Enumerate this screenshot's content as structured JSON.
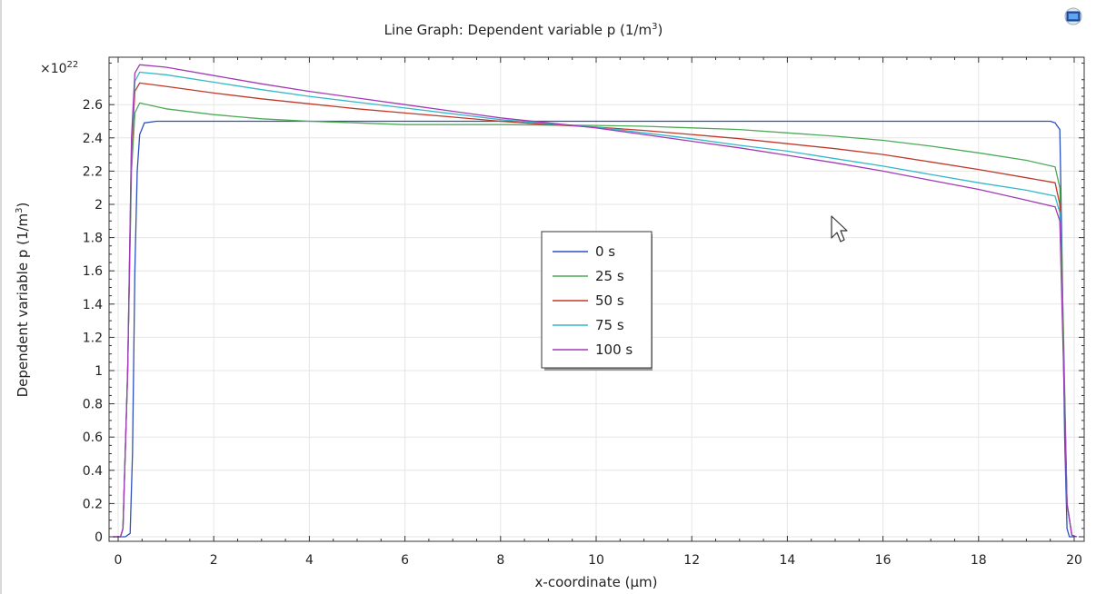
{
  "toolbar": {
    "export_icon": "image-export-icon"
  },
  "chart_data": {
    "type": "line",
    "title": "Line Graph: Dependent variable p (1/m³)",
    "title_parts": {
      "main": "Line Graph: Dependent variable p (1/m",
      "sup": "3",
      "close": ")"
    },
    "xlabel": "x-coordinate (µm)",
    "ylabel": "Dependent variable p (1/m³)",
    "ylabel_parts": {
      "main": "Dependent variable p (1/m",
      "sup": "3",
      "close": ")"
    },
    "y_multiplier": {
      "base": "×10",
      "exp": "22"
    },
    "xlim": [
      -0.3,
      20.2
    ],
    "ylim": [
      -0.03,
      2.86
    ],
    "x_ticks": [
      0,
      2,
      4,
      6,
      8,
      10,
      12,
      14,
      16,
      18,
      20
    ],
    "x_tick_labels": [
      "0",
      "2",
      "4",
      "6",
      "8",
      "10",
      "12",
      "14",
      "16",
      "18",
      "20"
    ],
    "y_ticks": [
      0,
      0.2,
      0.4,
      0.6,
      0.8,
      1,
      1.2,
      1.4,
      1.6,
      1.8,
      2,
      2.2,
      2.4,
      2.6
    ],
    "y_tick_labels": [
      "0",
      "0.2",
      "0.4",
      "0.6",
      "0.8",
      "1",
      "1.2",
      "1.4",
      "1.6",
      "1.8",
      "2",
      "2.2",
      "2.4",
      "2.6"
    ],
    "grid": true,
    "legend_position": "center",
    "series": [
      {
        "name": "0 s",
        "color": "#2f4fbf",
        "points": [
          [
            -0.1,
            0
          ],
          [
            0.15,
            0
          ],
          [
            0.25,
            0.02
          ],
          [
            0.3,
            0.5
          ],
          [
            0.35,
            1.6
          ],
          [
            0.4,
            2.2
          ],
          [
            0.45,
            2.42
          ],
          [
            0.55,
            2.49
          ],
          [
            0.8,
            2.5
          ],
          [
            19.5,
            2.5
          ],
          [
            19.6,
            2.49
          ],
          [
            19.7,
            2.45
          ],
          [
            19.75,
            1.6
          ],
          [
            19.8,
            0.6
          ],
          [
            19.85,
            0.05
          ],
          [
            19.9,
            0
          ],
          [
            20.0,
            0
          ]
        ]
      },
      {
        "name": "25 s",
        "color": "#4daa57",
        "points": [
          [
            -0.1,
            0
          ],
          [
            0.05,
            0
          ],
          [
            0.1,
            0.05
          ],
          [
            0.2,
            1.0
          ],
          [
            0.28,
            2.2
          ],
          [
            0.35,
            2.55
          ],
          [
            0.45,
            2.61
          ],
          [
            1,
            2.575
          ],
          [
            2,
            2.54
          ],
          [
            3,
            2.515
          ],
          [
            4,
            2.5
          ],
          [
            5,
            2.49
          ],
          [
            6,
            2.48
          ],
          [
            7,
            2.48
          ],
          [
            8,
            2.48
          ],
          [
            9,
            2.477
          ],
          [
            10,
            2.475
          ],
          [
            11,
            2.47
          ],
          [
            12,
            2.46
          ],
          [
            13,
            2.45
          ],
          [
            14,
            2.43
          ],
          [
            15,
            2.41
          ],
          [
            16,
            2.385
          ],
          [
            17,
            2.35
          ],
          [
            18,
            2.31
          ],
          [
            19,
            2.265
          ],
          [
            19.6,
            2.225
          ],
          [
            19.7,
            2.1
          ],
          [
            19.78,
            1.2
          ],
          [
            19.85,
            0.2
          ],
          [
            19.95,
            0.01
          ],
          [
            20.05,
            0
          ]
        ]
      },
      {
        "name": "50 s",
        "color": "#c0392b",
        "points": [
          [
            -0.1,
            0
          ],
          [
            0.05,
            0
          ],
          [
            0.1,
            0.05
          ],
          [
            0.2,
            1.0
          ],
          [
            0.28,
            2.3
          ],
          [
            0.35,
            2.68
          ],
          [
            0.45,
            2.73
          ],
          [
            1,
            2.71
          ],
          [
            2,
            2.67
          ],
          [
            3,
            2.635
          ],
          [
            4,
            2.605
          ],
          [
            5,
            2.575
          ],
          [
            6,
            2.55
          ],
          [
            7,
            2.525
          ],
          [
            8,
            2.5
          ],
          [
            9,
            2.48
          ],
          [
            10,
            2.465
          ],
          [
            11,
            2.445
          ],
          [
            12,
            2.42
          ],
          [
            13,
            2.395
          ],
          [
            14,
            2.365
          ],
          [
            15,
            2.335
          ],
          [
            16,
            2.3
          ],
          [
            17,
            2.255
          ],
          [
            18,
            2.21
          ],
          [
            19,
            2.16
          ],
          [
            19.6,
            2.13
          ],
          [
            19.7,
            2.0
          ],
          [
            19.78,
            1.1
          ],
          [
            19.85,
            0.2
          ],
          [
            19.95,
            0.01
          ],
          [
            20.05,
            0
          ]
        ]
      },
      {
        "name": "75 s",
        "color": "#35b8c9",
        "points": [
          [
            -0.1,
            0
          ],
          [
            0.05,
            0
          ],
          [
            0.1,
            0.05
          ],
          [
            0.2,
            1.0
          ],
          [
            0.28,
            2.35
          ],
          [
            0.35,
            2.74
          ],
          [
            0.45,
            2.795
          ],
          [
            1,
            2.78
          ],
          [
            2,
            2.735
          ],
          [
            3,
            2.69
          ],
          [
            4,
            2.65
          ],
          [
            5,
            2.615
          ],
          [
            6,
            2.58
          ],
          [
            7,
            2.545
          ],
          [
            8,
            2.51
          ],
          [
            9,
            2.485
          ],
          [
            10,
            2.465
          ],
          [
            11,
            2.43
          ],
          [
            12,
            2.395
          ],
          [
            13,
            2.355
          ],
          [
            14,
            2.32
          ],
          [
            15,
            2.275
          ],
          [
            16,
            2.23
          ],
          [
            17,
            2.18
          ],
          [
            18,
            2.13
          ],
          [
            19,
            2.085
          ],
          [
            19.6,
            2.05
          ],
          [
            19.7,
            1.95
          ],
          [
            19.78,
            1.05
          ],
          [
            19.85,
            0.2
          ],
          [
            19.95,
            0.01
          ],
          [
            20.05,
            0
          ]
        ]
      },
      {
        "name": "100 s",
        "color": "#a33ab5",
        "points": [
          [
            -0.1,
            0
          ],
          [
            0.05,
            0
          ],
          [
            0.1,
            0.05
          ],
          [
            0.2,
            1.0
          ],
          [
            0.28,
            2.4
          ],
          [
            0.35,
            2.79
          ],
          [
            0.45,
            2.84
          ],
          [
            1,
            2.825
          ],
          [
            2,
            2.775
          ],
          [
            3,
            2.725
          ],
          [
            4,
            2.68
          ],
          [
            5,
            2.64
          ],
          [
            6,
            2.6
          ],
          [
            7,
            2.56
          ],
          [
            8,
            2.52
          ],
          [
            9,
            2.49
          ],
          [
            10,
            2.46
          ],
          [
            11,
            2.42
          ],
          [
            12,
            2.38
          ],
          [
            13,
            2.34
          ],
          [
            14,
            2.295
          ],
          [
            15,
            2.25
          ],
          [
            16,
            2.2
          ],
          [
            17,
            2.145
          ],
          [
            18,
            2.09
          ],
          [
            19,
            2.025
          ],
          [
            19.6,
            1.985
          ],
          [
            19.7,
            1.9
          ],
          [
            19.78,
            1.0
          ],
          [
            19.85,
            0.2
          ],
          [
            19.95,
            0.01
          ],
          [
            20.05,
            0
          ]
        ]
      }
    ]
  }
}
